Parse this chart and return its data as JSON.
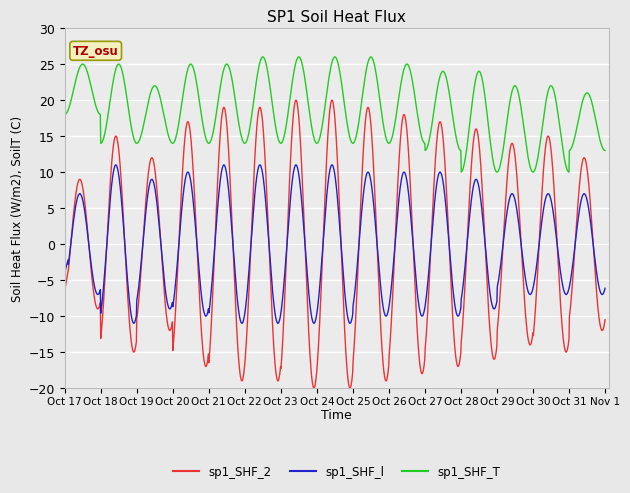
{
  "title": "SP1 Soil Heat Flux",
  "xlabel": "Time",
  "ylabel": "Soil Heat Flux (W/m2), SoilT (C)",
  "ylim": [
    -20,
    30
  ],
  "fig_facecolor": "#e8e8e8",
  "ax_facecolor": "#ebebeb",
  "tz_label": "TZ_osu",
  "tz_color": "#aa0000",
  "tz_box_facecolor": "#f5f0c0",
  "tz_box_edgecolor": "#999900",
  "legend_entries": [
    "sp1_SHF_2",
    "sp1_SHF_l",
    "sp1_SHF_T"
  ],
  "line_colors": [
    "#ee3333",
    "#2222cc",
    "#22cc22"
  ],
  "x_tick_labels": [
    "Oct 17",
    "Oct 18",
    "Oct 19",
    "Oct 20",
    "Oct 21",
    "Oct 22",
    "Oct 23",
    "Oct 24",
    "Oct 25",
    "Oct 26",
    "Oct 27",
    "Oct 28",
    "Oct 29",
    "Oct 30",
    "Oct 31",
    "Nov 1"
  ],
  "yticks": [
    -20,
    -15,
    -10,
    -5,
    0,
    5,
    10,
    15,
    20,
    25,
    30
  ],
  "n_days": 15,
  "pts_per_day": 96,
  "amp_red": [
    9,
    15,
    12,
    17,
    19,
    19,
    20,
    20,
    19,
    18,
    17,
    16,
    14,
    15,
    12
  ],
  "amp_blue": [
    7,
    11,
    9,
    10,
    11,
    11,
    11,
    11,
    10,
    10,
    10,
    9,
    7,
    7,
    7
  ],
  "shft_t_max": [
    25,
    25,
    22,
    25,
    25,
    26,
    26,
    26,
    26,
    25,
    24,
    24,
    22,
    22,
    21
  ],
  "shft_t_min": [
    18,
    14,
    14,
    14,
    14,
    14,
    14,
    14,
    14,
    14,
    13,
    10,
    10,
    10,
    13
  ],
  "line_width": 1.0,
  "grid_color": "#ffffff",
  "grid_lw": 1.0
}
